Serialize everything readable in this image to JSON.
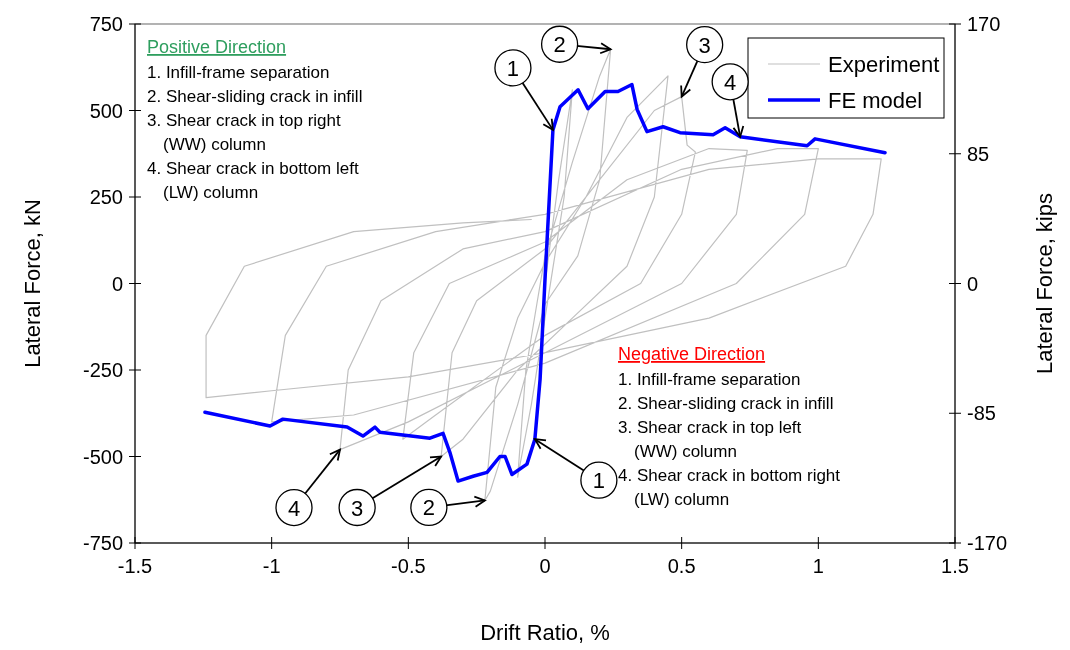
{
  "chart_data": {
    "type": "line",
    "xlabel": "Drift Ratio, %",
    "ylabel": "Lateral Force, kN",
    "y2label": "Lateral Force, kips",
    "xlim": [
      -1.5,
      1.5
    ],
    "xticks": [
      -1.5,
      -1,
      -0.5,
      0,
      0.5,
      1,
      1.5
    ],
    "ylim": [
      -750,
      750
    ],
    "yticks": [
      -750,
      -500,
      -250,
      0,
      250,
      500,
      750
    ],
    "y2lim": [
      -170,
      170
    ],
    "y2ticks": [
      -170,
      -85,
      0,
      85,
      170
    ],
    "grid": false,
    "legend": "top right",
    "line_style": "solid",
    "series": [
      {
        "name": "Experiment",
        "color": "#c0c0c0",
        "x": [
          0,
          0.05,
          0.1,
          0.07,
          0.03,
          0,
          -0.05,
          -0.1,
          -0.07,
          -0.03,
          0,
          0.1,
          0.2,
          0.24,
          0.2,
          0.12,
          0,
          -0.1,
          -0.2,
          -0.22,
          -0.18,
          -0.1,
          0,
          0.15,
          0.3,
          0.45,
          0.4,
          0.3,
          0.1,
          -0.1,
          -0.3,
          -0.38,
          -0.34,
          -0.25,
          0,
          0.2,
          0.4,
          0.5,
          0.52,
          0.55,
          0.5,
          0.35,
          0,
          -0.4,
          -0.52,
          -0.48,
          -0.35,
          0,
          0.3,
          0.6,
          0.74,
          0.7,
          0.5,
          0,
          -0.5,
          -0.75,
          -0.72,
          -0.6,
          -0.3,
          0,
          0.5,
          0.85,
          1.0,
          0.95,
          0.7,
          0,
          -0.7,
          -1.0,
          -0.95,
          -0.8,
          -0.4,
          0,
          0.6,
          1.0,
          1.23,
          1.2,
          1.1,
          0.6,
          0,
          -0.5,
          -1.0,
          -1.24,
          -1.24,
          -1.1,
          -0.7,
          -0.3,
          -0.05
        ],
        "values": [
          0,
          300,
          560,
          250,
          50,
          -100,
          -350,
          -560,
          -250,
          -60,
          80,
          350,
          600,
          677,
          300,
          80,
          -60,
          -350,
          -600,
          -627,
          -300,
          -100,
          60,
          250,
          480,
          600,
          250,
          50,
          -100,
          -250,
          -450,
          -500,
          -200,
          -50,
          100,
          300,
          500,
          540,
          400,
          380,
          200,
          0,
          -150,
          -380,
          -450,
          -200,
          0,
          120,
          300,
          390,
          385,
          200,
          0,
          -200,
          -400,
          -480,
          -250,
          -50,
          100,
          150,
          330,
          390,
          390,
          200,
          0,
          -230,
          -380,
          -400,
          -150,
          50,
          150,
          200,
          330,
          360,
          360,
          200,
          50,
          -100,
          -200,
          -270,
          -310,
          -330,
          -150,
          50,
          150,
          175,
          185
        ]
      },
      {
        "name": "FE model",
        "color": "#0000ff",
        "x": [
          -1.244,
          -1.006,
          -0.959,
          -0.724,
          -0.666,
          -0.622,
          -0.604,
          -0.421,
          -0.373,
          -0.348,
          -0.318,
          -0.263,
          -0.212,
          -0.165,
          -0.146,
          -0.121,
          -0.066,
          -0.037,
          -0.018,
          0,
          0.029,
          0.055,
          0.121,
          0.157,
          0.22,
          0.267,
          0.318,
          0.337,
          0.373,
          0.432,
          0.494,
          0.615,
          0.659,
          0.714,
          0.959,
          0.988,
          1.244
        ],
        "values": [
          -372,
          -412,
          -392,
          -415,
          -441,
          -415,
          -430,
          -447,
          -433,
          -488,
          -571,
          -557,
          -546,
          -500,
          -500,
          -552,
          -522,
          -450,
          -277,
          12,
          444,
          511,
          560,
          505,
          555,
          555,
          575,
          503,
          439,
          453,
          436,
          430,
          450,
          424,
          398,
          418,
          378
        ]
      }
    ],
    "annotations": [
      "Positive Direction",
      "1. Infill-frame separation",
      "2. Shear-sliding crack in infill",
      "3. Shear crack in top right\n(WW) column",
      "4. Shear crack in bottom left\n(LW) column",
      "Negative Direction",
      "1. Infill-frame separation",
      "2. Shear-sliding crack in infill",
      "3. Shear crack in top left\n(WW) column",
      "4. Shear crack in bottom right\n(LW) column",
      {
        "text": "1",
        "x": 0.029,
        "y": 444
      },
      {
        "text": "2",
        "x": 0.24,
        "y": 677
      },
      {
        "text": "3",
        "x": 0.5,
        "y": 540
      },
      {
        "text": "4",
        "x": 0.714,
        "y": 424
      },
      {
        "text": "1",
        "x": -0.037,
        "y": -450
      },
      {
        "text": "2",
        "x": -0.22,
        "y": -627
      },
      {
        "text": "3",
        "x": -0.38,
        "y": -500
      },
      {
        "text": "4",
        "x": -0.75,
        "y": -480
      }
    ]
  }
}
